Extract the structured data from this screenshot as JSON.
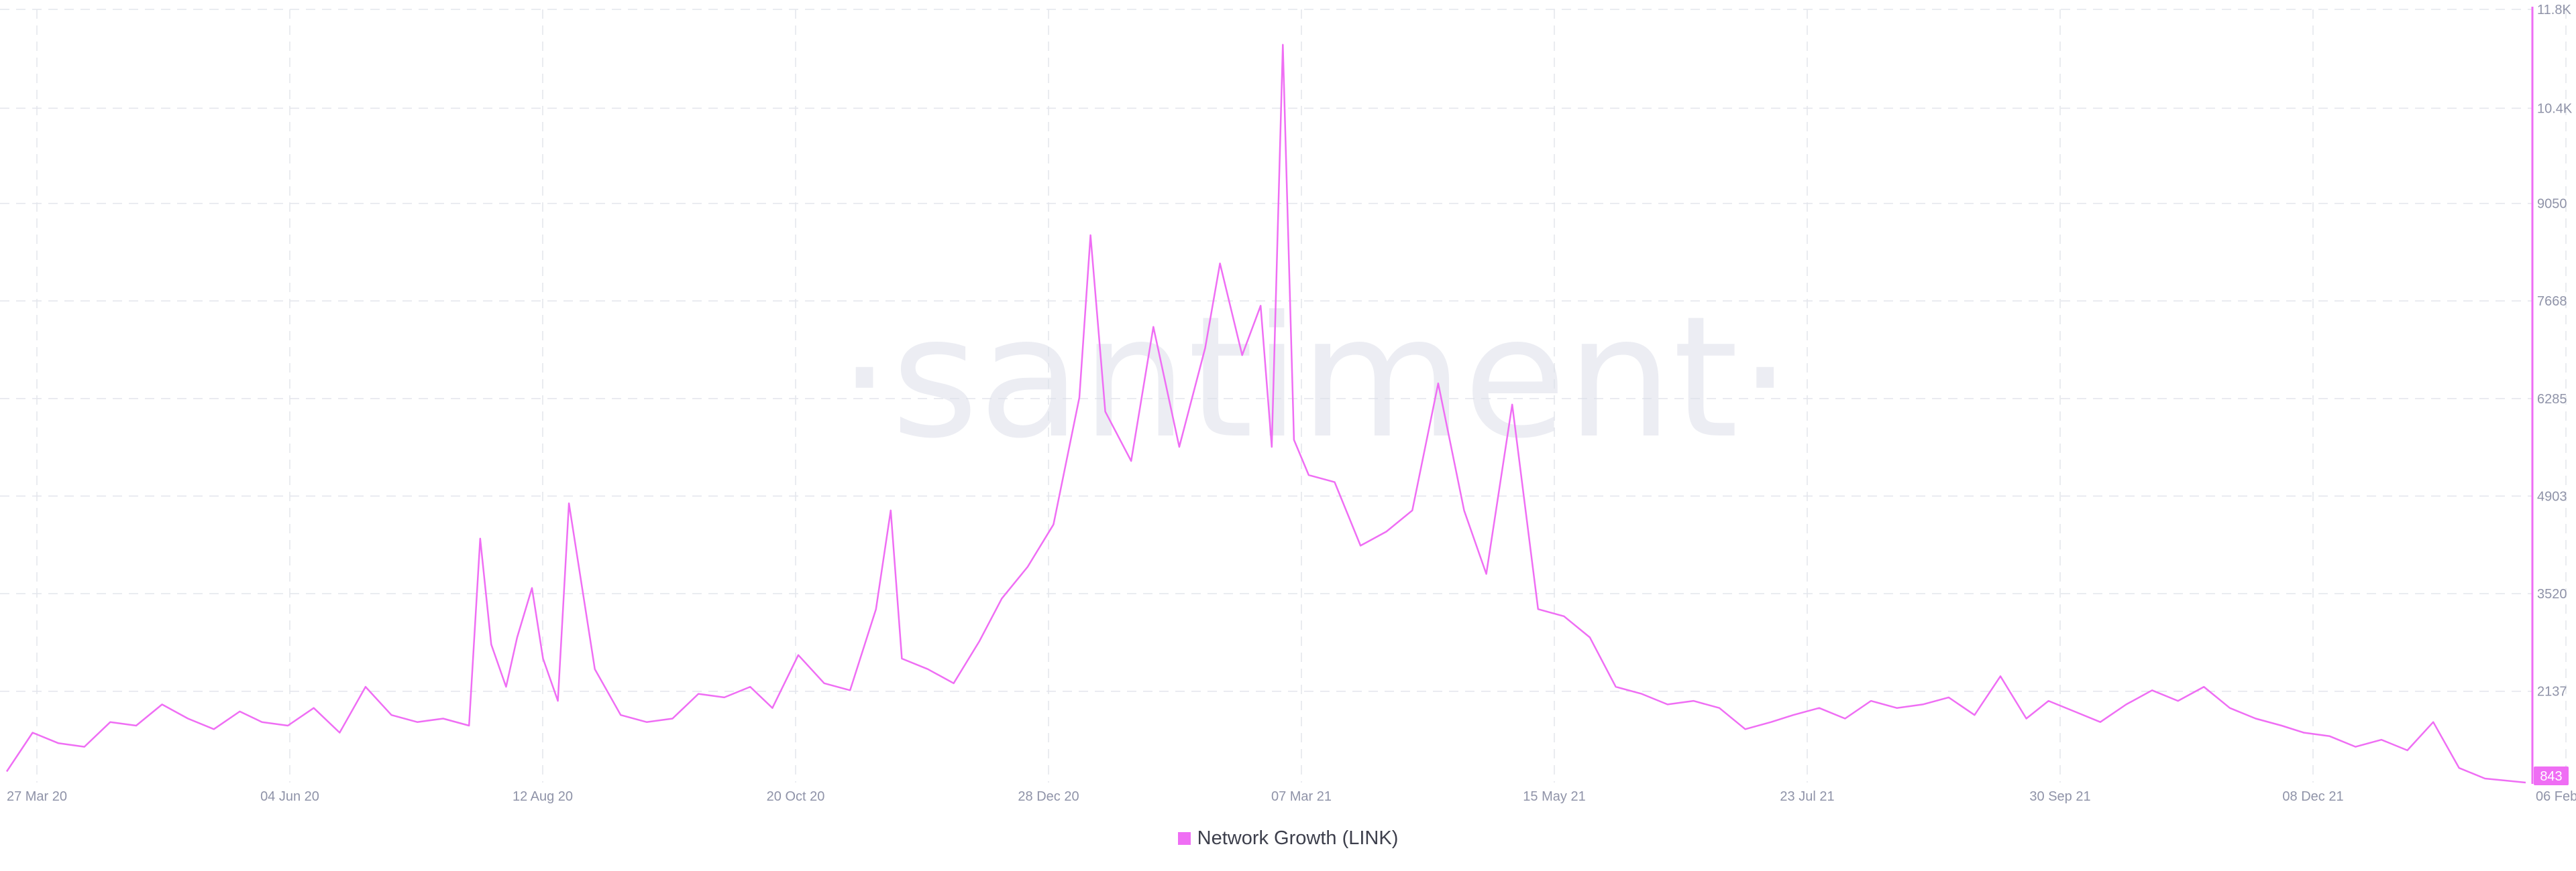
{
  "watermark": "·santiment·",
  "legend": {
    "label": "Network Growth (LINK)"
  },
  "colors": {
    "series": "#ef6ef4",
    "current_badge": "#ef6ef4",
    "grid": "#e3e5ec",
    "axis_text": "#8f93a8"
  },
  "chart_data": {
    "type": "line",
    "title": "",
    "xlabel": "",
    "ylabel": "",
    "grid": true,
    "legend_position": "bottom-center",
    "y_axis_side": "right",
    "x_tick_labels": [
      "27 Mar 20",
      "04 Jun 20",
      "12 Aug 20",
      "20 Oct 20",
      "28 Dec 20",
      "07 Mar 21",
      "15 May 21",
      "23 Jul 21",
      "30 Sep 21",
      "08 Dec 21",
      "06 Feb 22"
    ],
    "y_tick_labels": [
      "11.8K",
      "10.4K",
      "9050",
      "7668",
      "6285",
      "4903",
      "3520",
      "2137"
    ],
    "y_tick_values": [
      11800,
      10400,
      9050,
      7668,
      6285,
      4903,
      3520,
      2137
    ],
    "ylim": [
      843,
      11800
    ],
    "current_value_label": "843",
    "series": [
      {
        "name": "Network Growth (LINK)",
        "x": [
          "2020-03-27",
          "2020-04-03",
          "2020-04-10",
          "2020-04-17",
          "2020-04-24",
          "2020-05-01",
          "2020-05-08",
          "2020-05-15",
          "2020-05-22",
          "2020-05-29",
          "2020-06-04",
          "2020-06-11",
          "2020-06-18",
          "2020-06-25",
          "2020-07-02",
          "2020-07-09",
          "2020-07-16",
          "2020-07-23",
          "2020-07-30",
          "2020-08-02",
          "2020-08-05",
          "2020-08-09",
          "2020-08-12",
          "2020-08-16",
          "2020-08-19",
          "2020-08-23",
          "2020-08-26",
          "2020-09-02",
          "2020-09-09",
          "2020-09-16",
          "2020-09-23",
          "2020-09-30",
          "2020-10-07",
          "2020-10-14",
          "2020-10-20",
          "2020-10-27",
          "2020-11-03",
          "2020-11-10",
          "2020-11-17",
          "2020-11-21",
          "2020-11-24",
          "2020-12-01",
          "2020-12-08",
          "2020-12-15",
          "2020-12-21",
          "2020-12-28",
          "2021-01-04",
          "2021-01-11",
          "2021-01-14",
          "2021-01-18",
          "2021-01-25",
          "2021-01-31",
          "2021-02-07",
          "2021-02-14",
          "2021-02-18",
          "2021-02-24",
          "2021-03-01",
          "2021-03-04",
          "2021-03-07",
          "2021-03-10",
          "2021-03-14",
          "2021-03-21",
          "2021-03-28",
          "2021-04-04",
          "2021-04-11",
          "2021-04-18",
          "2021-04-25",
          "2021-05-01",
          "2021-05-08",
          "2021-05-15",
          "2021-05-22",
          "2021-05-29",
          "2021-06-05",
          "2021-06-12",
          "2021-06-19",
          "2021-06-26",
          "2021-07-03",
          "2021-07-10",
          "2021-07-17",
          "2021-07-23",
          "2021-07-30",
          "2021-08-06",
          "2021-08-13",
          "2021-08-20",
          "2021-08-27",
          "2021-09-03",
          "2021-09-10",
          "2021-09-17",
          "2021-09-24",
          "2021-09-30",
          "2021-10-07",
          "2021-10-14",
          "2021-10-21",
          "2021-10-28",
          "2021-11-04",
          "2021-11-11",
          "2021-11-18",
          "2021-11-25",
          "2021-12-02",
          "2021-12-08",
          "2021-12-15",
          "2021-12-22",
          "2021-12-29",
          "2022-01-05",
          "2022-01-12",
          "2022-01-19",
          "2022-01-26",
          "2022-02-01",
          "2022-02-06"
        ],
        "values": [
          1000,
          1550,
          1400,
          1350,
          1700,
          1650,
          1950,
          1750,
          1600,
          1850,
          1700,
          1650,
          1900,
          1550,
          2200,
          1800,
          1700,
          1750,
          1650,
          4300,
          2800,
          2200,
          2900,
          3600,
          2600,
          2000,
          4800,
          2450,
          1800,
          1700,
          1750,
          2100,
          2050,
          2200,
          1900,
          2650,
          2250,
          2150,
          3300,
          4700,
          2600,
          2450,
          2250,
          2850,
          3450,
          3900,
          4500,
          6300,
          8600,
          6100,
          5400,
          7300,
          5600,
          7000,
          8200,
          6900,
          7600,
          5600,
          11300,
          5700,
          5200,
          5100,
          4200,
          4400,
          4700,
          6500,
          4700,
          3800,
          6200,
          3300,
          3200,
          2900,
          2200,
          2100,
          1950,
          2000,
          1900,
          1600,
          1700,
          1800,
          1900,
          1750,
          2000,
          1900,
          1950,
          2050,
          1800,
          2350,
          1750,
          2000,
          1850,
          1700,
          1950,
          2150,
          2000,
          2200,
          1900,
          1750,
          1650,
          1550,
          1500,
          1350,
          1450,
          1300,
          1700,
          1050,
          900,
          870,
          843
        ]
      }
    ]
  }
}
